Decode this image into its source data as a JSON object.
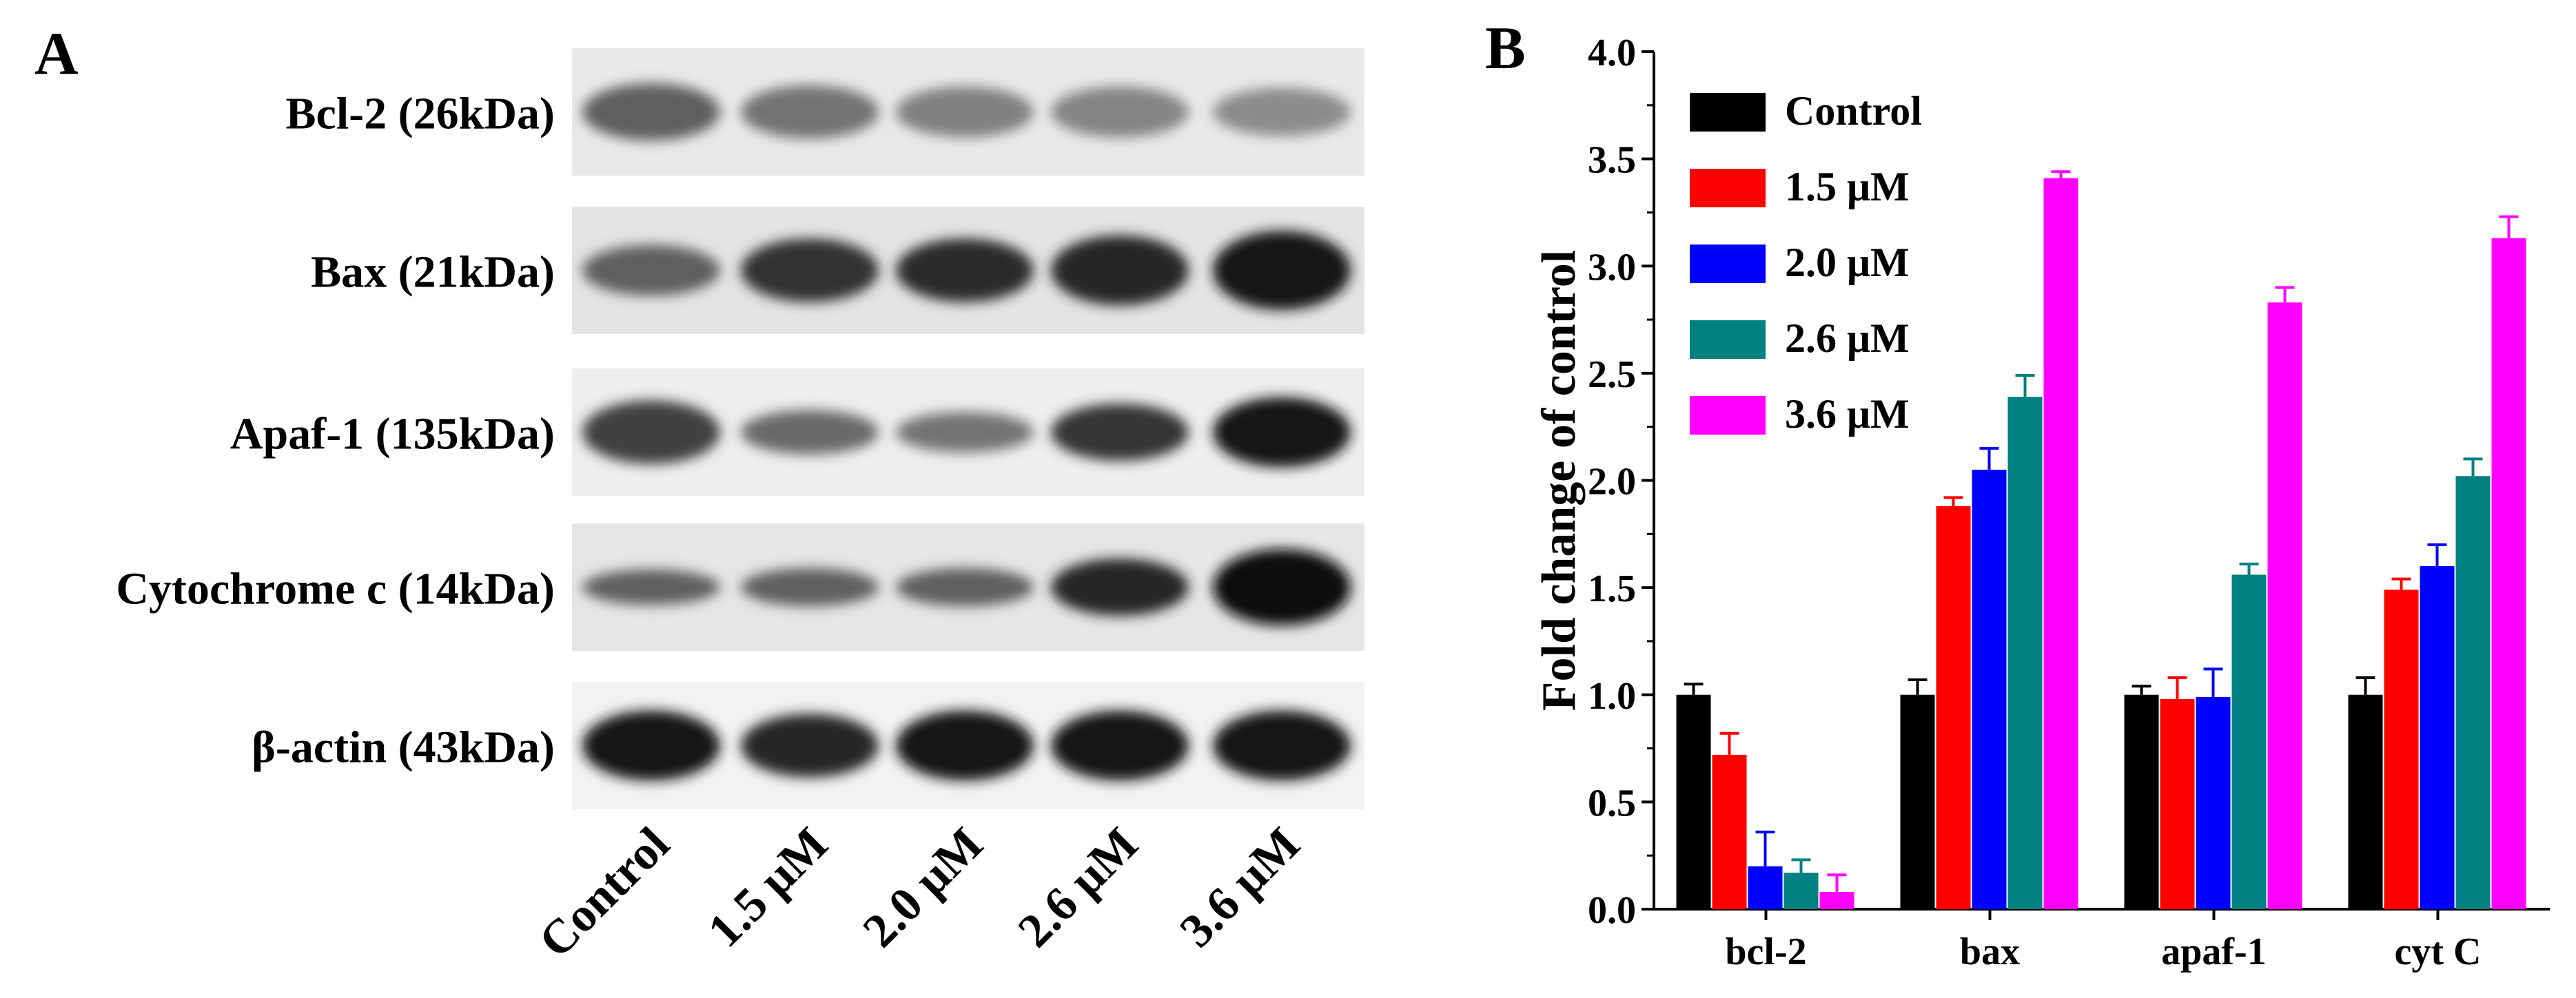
{
  "panel_a": {
    "letter": "A",
    "rows": [
      {
        "label": "Bcl-2 (26kDa)",
        "intensity": [
          0.55,
          0.45,
          0.38,
          0.36,
          0.32
        ],
        "height": [
          0.45,
          0.42,
          0.4,
          0.4,
          0.38
        ],
        "bg": "#e9e9e9"
      },
      {
        "label": "Bax (21kDa)",
        "intensity": [
          0.55,
          0.8,
          0.82,
          0.86,
          0.95
        ],
        "height": [
          0.4,
          0.5,
          0.5,
          0.55,
          0.62
        ],
        "bg": "#e4e4e4"
      },
      {
        "label": "Apaf-1 (135kDa)",
        "intensity": [
          0.72,
          0.5,
          0.45,
          0.78,
          0.95
        ],
        "height": [
          0.5,
          0.35,
          0.32,
          0.45,
          0.55
        ],
        "bg": "#eeeeee"
      },
      {
        "label": "Cytochrome c (14kDa)",
        "intensity": [
          0.55,
          0.55,
          0.55,
          0.85,
          0.97
        ],
        "height": [
          0.28,
          0.3,
          0.3,
          0.45,
          0.6
        ],
        "bg": "#e6e6e6"
      },
      {
        "label": "β-actin (43kDa)",
        "intensity": [
          0.95,
          0.85,
          0.95,
          0.95,
          0.95
        ],
        "height": [
          0.55,
          0.5,
          0.55,
          0.55,
          0.55
        ],
        "bg": "#f2f2f2"
      }
    ],
    "lanes": [
      "Control",
      "1.5 μM",
      "2.0 μM",
      "2.6 μM",
      "3.6 μM"
    ]
  },
  "chart_data": {
    "type": "bar",
    "panel_letter": "B",
    "ylabel": "Fold change of control",
    "xlabel": "",
    "ylim": [
      0,
      4.0
    ],
    "yticks": [
      "0.0",
      "0.5",
      "1.0",
      "1.5",
      "2.0",
      "2.5",
      "3.0",
      "3.5",
      "4.0"
    ],
    "categories": [
      "bcl-2",
      "bax",
      "apaf-1",
      "cyt C"
    ],
    "legend_position": "top-left",
    "series": [
      {
        "name": "Control",
        "color": "#000000",
        "values": [
          1.0,
          1.0,
          1.0,
          1.0
        ],
        "errors": [
          0.05,
          0.07,
          0.04,
          0.08
        ]
      },
      {
        "name": "1.5 μM",
        "color": "#ff0000",
        "values": [
          0.72,
          1.88,
          0.98,
          1.49
        ],
        "errors": [
          0.1,
          0.04,
          0.1,
          0.05
        ]
      },
      {
        "name": "2.0 μM",
        "color": "#0000ff",
        "values": [
          0.2,
          2.05,
          0.99,
          1.6
        ],
        "errors": [
          0.16,
          0.1,
          0.13,
          0.1
        ]
      },
      {
        "name": "2.6 μM",
        "color": "#008080",
        "values": [
          0.17,
          2.39,
          1.56,
          2.02
        ],
        "errors": [
          0.06,
          0.1,
          0.05,
          0.08
        ]
      },
      {
        "name": "3.6 μM",
        "color": "#ff00ff",
        "values": [
          0.08,
          3.41,
          2.83,
          3.13
        ],
        "errors": [
          0.08,
          0.03,
          0.07,
          0.1
        ]
      }
    ]
  }
}
